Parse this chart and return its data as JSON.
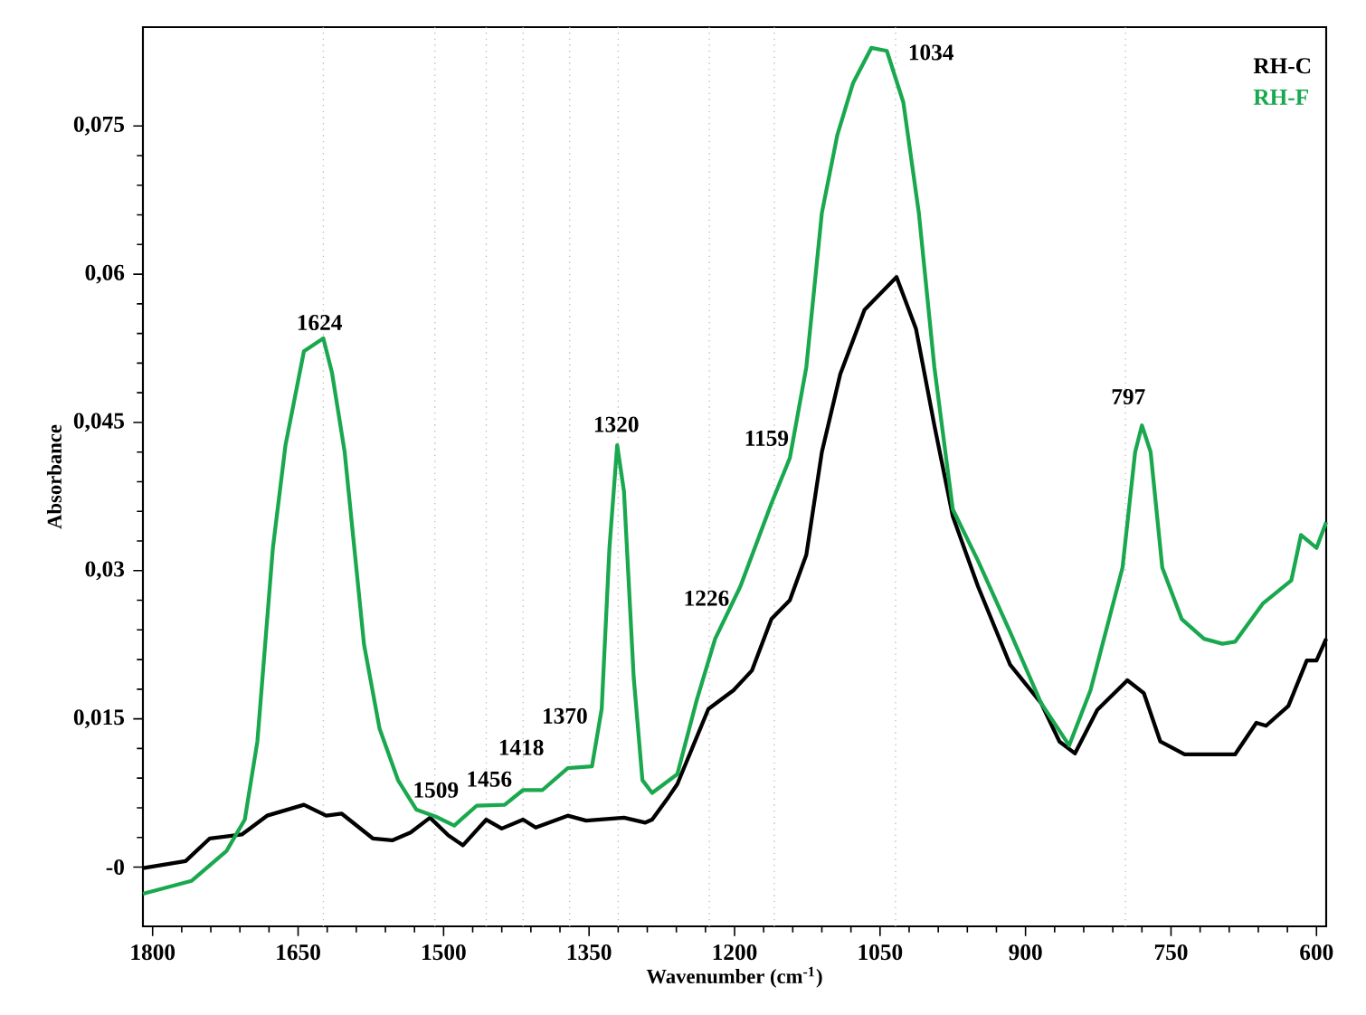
{
  "chart_data": {
    "type": "line",
    "xlabel": "Wavenumber (cm$^{-1}$)",
    "ylabel": "Absorbance",
    "xlim": [
      1810,
      590
    ],
    "ylim": [
      -0.006,
      0.085
    ],
    "xticks": [
      1800,
      1650,
      1500,
      1350,
      1200,
      1050,
      900,
      750,
      600
    ],
    "yticks": [
      {
        "value": 0,
        "label": "-0"
      },
      {
        "value": 0.015,
        "label": "0,015"
      },
      {
        "value": 0.03,
        "label": "0,03"
      },
      {
        "value": 0.045,
        "label": "0,045"
      },
      {
        "value": 0.06,
        "label": "0,06"
      },
      {
        "value": 0.075,
        "label": "0,075"
      }
    ],
    "legend": "top right",
    "series": [
      {
        "name": "RH-C",
        "color": "#000000",
        "x": [
          1810,
          1766,
          1741,
          1708,
          1682,
          1644,
          1621,
          1605,
          1573,
          1553,
          1534,
          1514,
          1495,
          1480,
          1456,
          1440,
          1418,
          1405,
          1372,
          1353,
          1314,
          1292,
          1285,
          1268,
          1259,
          1227,
          1201,
          1182,
          1162,
          1143,
          1126,
          1110,
          1091,
          1066,
          1033,
          1013,
          994,
          975,
          949,
          916,
          884,
          865,
          849,
          826,
          795,
          778,
          761,
          736,
          684,
          662,
          652,
          629,
          610,
          600,
          590
        ],
        "values": [
          -0.0001,
          0.0006,
          0.0029,
          0.0033,
          0.0052,
          0.0063,
          0.0052,
          0.0054,
          0.0029,
          0.0027,
          0.0035,
          0.005,
          0.0032,
          0.0022,
          0.0048,
          0.0039,
          0.0048,
          0.004,
          0.0052,
          0.0047,
          0.005,
          0.0045,
          0.0048,
          0.0071,
          0.0084,
          0.016,
          0.0179,
          0.0199,
          0.0251,
          0.027,
          0.0316,
          0.042,
          0.0499,
          0.0564,
          0.0597,
          0.0545,
          0.0447,
          0.0355,
          0.0284,
          0.0205,
          0.0166,
          0.0127,
          0.0115,
          0.0159,
          0.0189,
          0.0176,
          0.0127,
          0.0114,
          0.0114,
          0.0146,
          0.0143,
          0.0163,
          0.0209,
          0.0209,
          0.0231
        ]
      },
      {
        "name": "RH-F",
        "color": "#1aa84f",
        "x": [
          1810,
          1760,
          1724,
          1705,
          1692,
          1676,
          1663,
          1644,
          1624,
          1615,
          1602,
          1582,
          1566,
          1547,
          1528,
          1508,
          1489,
          1466,
          1437,
          1418,
          1398,
          1372,
          1347,
          1337,
          1329,
          1321,
          1314,
          1304,
          1295,
          1285,
          1259,
          1239,
          1220,
          1194,
          1162,
          1143,
          1126,
          1110,
          1094,
          1078,
          1059,
          1043,
          1026,
          1010,
          994,
          975,
          949,
          916,
          884,
          855,
          833,
          800,
          787,
          780,
          771,
          759,
          739,
          716,
          697,
          684,
          655,
          626,
          616,
          600,
          590
        ],
        "values": [
          -0.0027,
          -0.0014,
          0.0016,
          0.0048,
          0.0127,
          0.0323,
          0.0427,
          0.0522,
          0.0535,
          0.05,
          0.042,
          0.0225,
          0.014,
          0.0088,
          0.0058,
          0.0051,
          0.0042,
          0.0062,
          0.0063,
          0.0078,
          0.0078,
          0.01,
          0.0102,
          0.016,
          0.0323,
          0.0427,
          0.038,
          0.0192,
          0.0088,
          0.0075,
          0.0094,
          0.0169,
          0.0231,
          0.0284,
          0.0368,
          0.0414,
          0.0506,
          0.0662,
          0.0741,
          0.0793,
          0.0829,
          0.0826,
          0.0774,
          0.0662,
          0.0506,
          0.0362,
          0.031,
          0.0238,
          0.0166,
          0.0123,
          0.0179,
          0.0303,
          0.042,
          0.0447,
          0.042,
          0.0303,
          0.0251,
          0.0231,
          0.0226,
          0.0228,
          0.0267,
          0.029,
          0.0336,
          0.0323,
          0.0349
        ]
      }
    ],
    "ref_lines": [
      {
        "axis": "x",
        "value": 1624,
        "color": "#bbbbbb",
        "line_style": "dotted"
      },
      {
        "axis": "x",
        "value": 1509,
        "color": "#bbbbbb",
        "line_style": "dotted"
      },
      {
        "axis": "x",
        "value": 1456,
        "color": "#bbbbbb",
        "line_style": "dotted"
      },
      {
        "axis": "x",
        "value": 1418,
        "color": "#bbbbbb",
        "line_style": "dotted"
      },
      {
        "axis": "x",
        "value": 1370,
        "color": "#bbbbbb",
        "line_style": "dotted"
      },
      {
        "axis": "x",
        "value": 1320,
        "color": "#bbbbbb",
        "line_style": "dotted"
      },
      {
        "axis": "x",
        "value": 1226,
        "color": "#bbbbbb",
        "line_style": "dotted"
      },
      {
        "axis": "x",
        "value": 1159,
        "color": "#bbbbbb",
        "line_style": "dotted"
      },
      {
        "axis": "x",
        "value": 1034,
        "color": "#bbbbbb",
        "line_style": "dotted"
      },
      {
        "axis": "x",
        "value": 797,
        "color": "#bbbbbb",
        "line_style": "dotted"
      }
    ],
    "annotations": [
      {
        "text": "1624",
        "x": 1628,
        "y": 0.0551
      },
      {
        "text": "1509",
        "x": 1508,
        "y": 0.0078
      },
      {
        "text": "1456",
        "x": 1453,
        "y": 0.0089
      },
      {
        "text": "1418",
        "x": 1420,
        "y": 0.0121
      },
      {
        "text": "1370",
        "x": 1375,
        "y": 0.0153
      },
      {
        "text": "1320",
        "x": 1322,
        "y": 0.0448
      },
      {
        "text": "1226",
        "x": 1229,
        "y": 0.0272
      },
      {
        "text": "1159",
        "x": 1167,
        "y": 0.0434
      },
      "1034",
      {
        "text": "797",
        "x": 794,
        "y": 0.0476
      }
    ]
  }
}
